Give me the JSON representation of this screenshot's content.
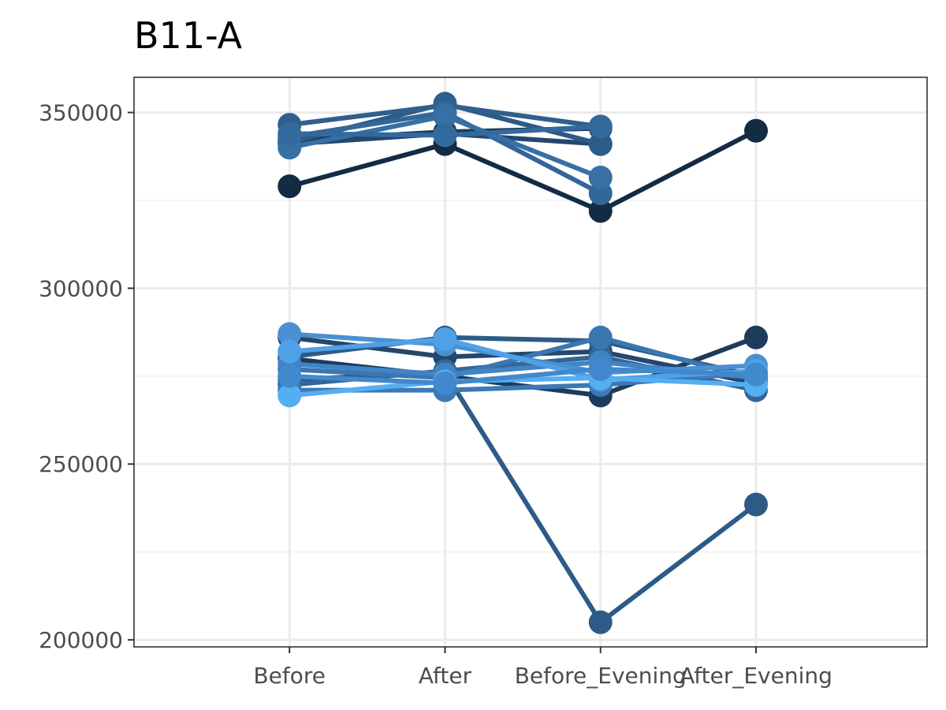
{
  "chart_data": {
    "type": "line",
    "title": "B11-A",
    "xlabel": "",
    "ylabel": "",
    "categories": [
      "Before",
      "After",
      "Before_Evening",
      "After_Evening"
    ],
    "ylim": [
      198000,
      360000
    ],
    "yticks": [
      200000,
      250000,
      300000,
      350000
    ],
    "ytick_labels": [
      "200000",
      "250000",
      "300000",
      "350000"
    ],
    "grid": true,
    "legend": "none",
    "series": [
      {
        "color": "#132b43",
        "values": [
          329000,
          341000,
          322000,
          344800
        ]
      },
      {
        "color": "#1d3b5c",
        "values": [
          342000,
          344500,
          345500,
          null
        ]
      },
      {
        "color": "#24476d",
        "values": [
          341000,
          344000,
          341000,
          null
        ]
      },
      {
        "color": "#2d5b87",
        "values": [
          341500,
          352500,
          341000,
          null
        ]
      },
      {
        "color": "#305f8d",
        "values": [
          346500,
          352000,
          346000,
          null
        ]
      },
      {
        "color": "#336699",
        "values": [
          343000,
          350000,
          327000,
          null
        ]
      },
      {
        "color": "#3670a5",
        "values": [
          340000,
          349000,
          331500,
          null
        ]
      },
      {
        "color": "#336a9e",
        "values": [
          344000,
          343500,
          346000,
          null
        ]
      },
      {
        "color": "#1d3b5c",
        "values": [
          280000,
          275000,
          269500,
          286000
        ]
      },
      {
        "color": "#24476d",
        "values": [
          286000,
          280500,
          282000,
          273000
        ]
      },
      {
        "color": "#2d5b87",
        "values": [
          280500,
          286000,
          285000,
          275000
        ]
      },
      {
        "color": "#2d5b87",
        "values": [
          274000,
          276000,
          205000,
          238500
        ]
      },
      {
        "color": "#336699",
        "values": [
          272500,
          276500,
          280500,
          271000
        ]
      },
      {
        "color": "#3a77b1",
        "values": [
          277000,
          274500,
          286000,
          274000
        ]
      },
      {
        "color": "#3c79b5",
        "values": [
          271000,
          271000,
          272500,
          276000
        ]
      },
      {
        "color": "#4184c4",
        "values": [
          278500,
          275500,
          279000,
          274500
        ]
      },
      {
        "color": "#4a90d2",
        "values": [
          287000,
          284000,
          276000,
          278000
        ]
      },
      {
        "color": "#4fa0e6",
        "values": [
          282000,
          285500,
          274000,
          276500
        ]
      },
      {
        "color": "#54aef2",
        "values": [
          269500,
          273500,
          274500,
          272500
        ]
      },
      {
        "color": "#4189cc",
        "values": [
          275000,
          273000,
          277000,
          275500
        ]
      }
    ]
  }
}
